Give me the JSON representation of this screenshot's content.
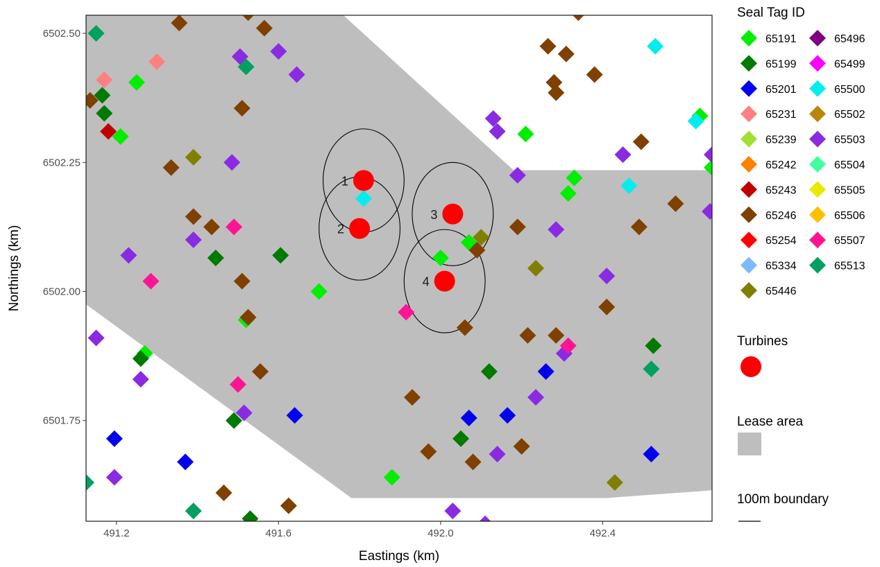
{
  "chart_data": {
    "type": "scatter",
    "xlabel": "Eastings (km)",
    "ylabel": "Northings (km)",
    "xlim": [
      491.125,
      492.67
    ],
    "ylim": [
      6501.555,
      6502.535
    ],
    "x_ticks": [
      491.2,
      491.6,
      492.0,
      492.4
    ],
    "x_tick_labels": [
      "491.2",
      "491.6",
      "492.0",
      "492.4"
    ],
    "y_ticks": [
      6501.75,
      6502.0,
      6502.25,
      6502.5
    ],
    "y_tick_labels": [
      "6501.75",
      "6502.00",
      "6502.25",
      "6502.50"
    ],
    "grid": false,
    "legend_placement": "right",
    "seal_legend_title": "Seal Tag ID",
    "turbine_legend_title": "Turbines",
    "lease_legend_title": "Lease area",
    "boundary_legend_title": "100m boundary",
    "lease_color": "#bebebe",
    "turbine_color": "#ff0000",
    "lease_polygon": [
      [
        491.125,
        6502.535
      ],
      [
        491.76,
        6502.535
      ],
      [
        492.18,
        6502.235
      ],
      [
        492.67,
        6502.235
      ],
      [
        492.67,
        6501.615
      ],
      [
        492.41,
        6501.6
      ],
      [
        491.78,
        6501.6
      ],
      [
        491.125,
        6501.975
      ]
    ],
    "turbines": [
      {
        "label": "1",
        "x": 491.81,
        "y": 6502.215
      },
      {
        "label": "2",
        "x": 491.8,
        "y": 6502.122
      },
      {
        "label": "3",
        "x": 492.03,
        "y": 6502.15
      },
      {
        "label": "4",
        "x": 492.01,
        "y": 6502.02
      }
    ],
    "boundary_radius_km": 0.1,
    "series": [
      {
        "name": "65191",
        "color": "#00ee00",
        "points": [
          [
            491.25,
            6502.405
          ],
          [
            491.21,
            6502.3
          ],
          [
            491.7,
            6502.0
          ],
          [
            491.52,
            6501.945
          ],
          [
            491.27,
            6501.88
          ],
          [
            492.0,
            6502.065
          ],
          [
            492.07,
            6502.095
          ],
          [
            492.21,
            6502.305
          ],
          [
            492.33,
            6502.22
          ],
          [
            492.315,
            6502.19
          ],
          [
            491.88,
            6501.64
          ],
          [
            492.64,
            6502.34
          ],
          [
            492.67,
            6502.24
          ]
        ]
      },
      {
        "name": "65199",
        "color": "#007a00",
        "points": [
          [
            491.165,
            6502.38
          ],
          [
            491.17,
            6502.345
          ],
          [
            491.445,
            6502.065
          ],
          [
            491.605,
            6502.07
          ],
          [
            491.26,
            6501.87
          ],
          [
            491.49,
            6501.75
          ],
          [
            492.12,
            6501.845
          ],
          [
            492.05,
            6501.715
          ],
          [
            492.525,
            6501.895
          ],
          [
            491.53,
            6501.56
          ]
        ]
      },
      {
        "name": "65201",
        "color": "#0000ee",
        "points": [
          [
            491.195,
            6501.715
          ],
          [
            491.37,
            6501.67
          ],
          [
            491.64,
            6501.76
          ],
          [
            492.07,
            6501.755
          ],
          [
            492.165,
            6501.76
          ],
          [
            492.26,
            6501.845
          ],
          [
            492.52,
            6501.685
          ]
        ]
      },
      {
        "name": "65231",
        "color": "#ff8080",
        "points": [
          [
            491.17,
            6502.41
          ],
          [
            491.3,
            6502.445
          ]
        ]
      },
      {
        "name": "65239",
        "color": "#a0e030",
        "points": []
      },
      {
        "name": "65242",
        "color": "#ff8000",
        "points": []
      },
      {
        "name": "65243",
        "color": "#c00000",
        "points": [
          [
            491.18,
            6502.31
          ]
        ]
      },
      {
        "name": "65246",
        "color": "#804000",
        "points": [
          [
            491.355,
            6502.52
          ],
          [
            491.525,
            6502.54
          ],
          [
            491.565,
            6502.51
          ],
          [
            491.135,
            6502.37
          ],
          [
            491.51,
            6502.355
          ],
          [
            491.335,
            6502.24
          ],
          [
            491.39,
            6502.145
          ],
          [
            491.435,
            6502.125
          ],
          [
            491.51,
            6502.02
          ],
          [
            491.525,
            6501.95
          ],
          [
            491.555,
            6501.845
          ],
          [
            491.465,
            6501.61
          ],
          [
            491.625,
            6501.585
          ],
          [
            491.93,
            6501.795
          ],
          [
            491.97,
            6501.69
          ],
          [
            492.06,
            6501.93
          ],
          [
            492.09,
            6502.08
          ],
          [
            492.19,
            6502.125
          ],
          [
            492.08,
            6501.67
          ],
          [
            492.2,
            6501.7
          ],
          [
            492.215,
            6501.915
          ],
          [
            492.285,
            6501.915
          ],
          [
            492.265,
            6502.475
          ],
          [
            492.31,
            6502.46
          ],
          [
            492.28,
            6502.405
          ],
          [
            492.285,
            6502.385
          ],
          [
            492.34,
            6502.54
          ],
          [
            492.38,
            6502.42
          ],
          [
            492.16,
            6502.55
          ],
          [
            492.41,
            6501.97
          ],
          [
            492.495,
            6502.29
          ],
          [
            492.49,
            6502.125
          ],
          [
            492.58,
            6502.17
          ]
        ]
      },
      {
        "name": "65254",
        "color": "#ff0000",
        "points": []
      },
      {
        "name": "65334",
        "color": "#7fb8ff",
        "points": []
      },
      {
        "name": "65446",
        "color": "#808000",
        "points": [
          [
            491.39,
            6502.26
          ],
          [
            492.1,
            6502.105
          ],
          [
            492.235,
            6502.045
          ],
          [
            492.43,
            6501.63
          ]
        ]
      },
      {
        "name": "65496",
        "color": "#800080",
        "points": []
      },
      {
        "name": "65499",
        "color": "#ff00ff",
        "points": []
      },
      {
        "name": "65500",
        "color": "#00eeee",
        "points": [
          [
            491.81,
            6502.18
          ],
          [
            492.53,
            6502.475
          ],
          [
            492.465,
            6502.205
          ],
          [
            492.63,
            6502.33
          ]
        ]
      },
      {
        "name": "65502",
        "color": "#b8860b",
        "points": []
      },
      {
        "name": "65503",
        "color": "#8a2be2",
        "points": [
          [
            491.505,
            6502.455
          ],
          [
            491.6,
            6502.465
          ],
          [
            491.645,
            6502.42
          ],
          [
            491.485,
            6502.25
          ],
          [
            491.39,
            6502.1
          ],
          [
            491.23,
            6502.07
          ],
          [
            491.15,
            6501.91
          ],
          [
            491.26,
            6501.83
          ],
          [
            491.195,
            6501.64
          ],
          [
            491.515,
            6501.765
          ],
          [
            492.13,
            6502.335
          ],
          [
            492.14,
            6502.31
          ],
          [
            492.19,
            6502.225
          ],
          [
            492.285,
            6502.12
          ],
          [
            492.41,
            6502.03
          ],
          [
            492.45,
            6502.265
          ],
          [
            492.665,
            6502.155
          ],
          [
            492.67,
            6502.265
          ],
          [
            492.305,
            6501.88
          ],
          [
            492.235,
            6501.795
          ],
          [
            492.14,
            6501.685
          ],
          [
            492.11,
            6501.55
          ],
          [
            492.03,
            6501.575
          ]
        ]
      },
      {
        "name": "65504",
        "color": "#40ff9f",
        "points": []
      },
      {
        "name": "65505",
        "color": "#e8e800",
        "points": []
      },
      {
        "name": "65506",
        "color": "#ffc000",
        "points": []
      },
      {
        "name": "65507",
        "color": "#ff1493",
        "points": [
          [
            491.49,
            6502.125
          ],
          [
            491.285,
            6502.02
          ],
          [
            491.5,
            6501.82
          ],
          [
            491.915,
            6501.96
          ],
          [
            492.315,
            6501.895
          ]
        ]
      },
      {
        "name": "65513",
        "color": "#00a060",
        "points": [
          [
            491.15,
            6502.5
          ],
          [
            491.52,
            6502.435
          ],
          [
            491.39,
            6501.575
          ],
          [
            492.52,
            6501.85
          ],
          [
            491.125,
            6501.63
          ]
        ]
      }
    ]
  }
}
